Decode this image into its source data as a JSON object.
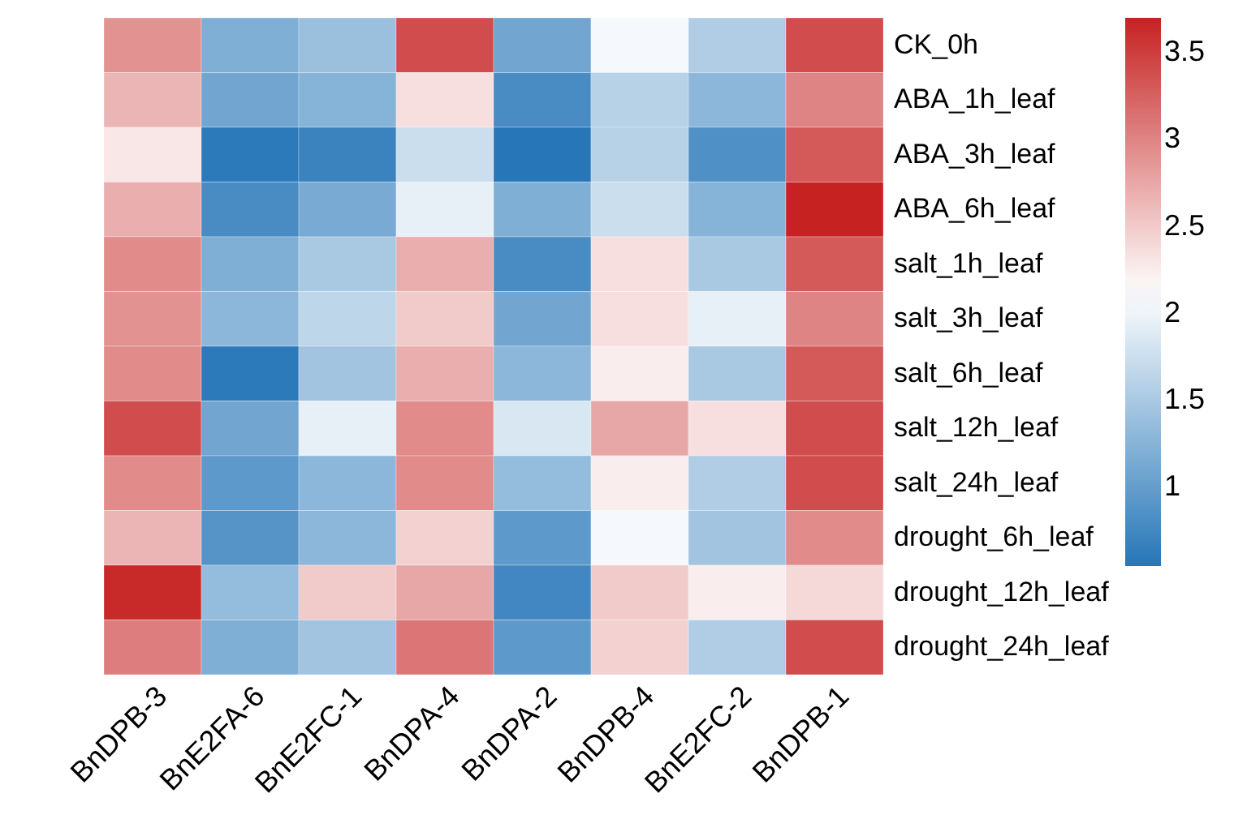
{
  "chart_data": {
    "type": "heatmap",
    "categories": [
      "BnDPB-3",
      "BnE2FA-6",
      "BnE2FC-1",
      "BnDPA-4",
      "BnDPA-2",
      "BnDPB-4",
      "BnE2FC-2",
      "BnDPB-1"
    ],
    "y_categories": [
      "CK_0h",
      "ABA_1h_leaf",
      "ABA_3h_leaf",
      "ABA_6h_leaf",
      "salt_1h_leaf",
      "salt_3h_leaf",
      "salt_6h_leaf",
      "salt_12h_leaf",
      "salt_24h_leaf",
      "drought_6h_leaf",
      "drought_12h_leaf",
      "drought_24h_leaf"
    ],
    "cells": [
      [
        2.9,
        1.2,
        1.4,
        3.4,
        1.1,
        2.05,
        1.55,
        3.4
      ],
      [
        2.65,
        1.1,
        1.25,
        2.35,
        0.8,
        1.6,
        1.3,
        3.0
      ],
      [
        2.3,
        0.6,
        0.7,
        1.75,
        0.55,
        1.6,
        0.85,
        3.3
      ],
      [
        2.7,
        0.8,
        1.15,
        1.95,
        1.2,
        1.75,
        1.25,
        3.7
      ],
      [
        2.95,
        1.2,
        1.5,
        2.7,
        0.8,
        2.35,
        1.5,
        3.3
      ],
      [
        2.9,
        1.3,
        1.65,
        2.5,
        1.1,
        2.35,
        1.95,
        3.0
      ],
      [
        2.95,
        0.6,
        1.45,
        2.7,
        1.3,
        2.25,
        1.5,
        3.3
      ],
      [
        3.4,
        1.1,
        1.95,
        2.95,
        1.85,
        2.75,
        2.35,
        3.4
      ],
      [
        2.95,
        0.95,
        1.3,
        2.95,
        1.35,
        2.25,
        1.55,
        3.4
      ],
      [
        2.65,
        0.9,
        1.3,
        2.45,
        0.95,
        2.05,
        1.45,
        2.95
      ],
      [
        3.65,
        1.35,
        2.5,
        2.75,
        0.75,
        2.5,
        2.25,
        2.4
      ],
      [
        3.05,
        1.2,
        1.45,
        3.1,
        0.95,
        2.45,
        1.55,
        3.4
      ]
    ],
    "clim": [
      0.55,
      3.7
    ],
    "cticks": [
      1,
      1.5,
      2,
      2.5,
      3,
      3.5
    ]
  }
}
